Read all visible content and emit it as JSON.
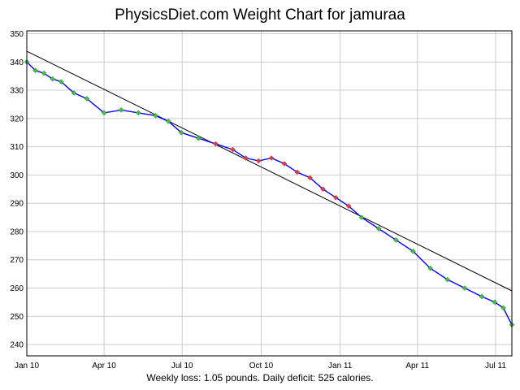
{
  "chart_data": {
    "type": "scatter",
    "title": "PhysicsDiet.com Weight Chart for jamuraa",
    "footer": "Weekly loss: 1.05 pounds. Daily deficit: 525 calories.",
    "xlabel": "",
    "ylabel": "",
    "x_ticks": [
      "Jan 10",
      "Apr 10",
      "Jul 10",
      "Oct 10",
      "Jan 11",
      "Apr 11",
      "Jul 11"
    ],
    "y_ticks": [
      240,
      250,
      260,
      270,
      280,
      290,
      300,
      310,
      320,
      330,
      340,
      350
    ],
    "xlim_days": [
      0,
      565
    ],
    "ylim": [
      236,
      351
    ],
    "grid": true,
    "colors": {
      "below_trend": "#33cc33",
      "above_trend": "#ff3333",
      "trend": "#0000ff",
      "fit_line": "#000000"
    },
    "fit_line": {
      "start": {
        "x": "Jan 10",
        "y": 343.8
      },
      "end": {
        "x": "Jul 11",
        "y": 259
      }
    },
    "series": [
      {
        "values": [
          [
            0,
            340
          ],
          [
            10,
            337
          ],
          [
            20,
            336
          ],
          [
            30,
            334
          ],
          [
            40,
            333
          ],
          [
            55,
            329
          ],
          [
            70,
            327
          ],
          [
            90,
            322
          ],
          [
            110,
            323
          ],
          [
            130,
            322
          ],
          [
            150,
            321
          ],
          [
            165,
            319
          ],
          [
            180,
            315
          ],
          [
            200,
            313
          ],
          [
            220,
            311
          ],
          [
            240,
            309
          ],
          [
            255,
            306
          ],
          [
            270,
            305
          ],
          [
            285,
            306
          ],
          [
            300,
            304
          ],
          [
            315,
            301
          ],
          [
            330,
            299
          ],
          [
            345,
            295
          ],
          [
            360,
            292
          ],
          [
            375,
            289
          ],
          [
            390,
            285
          ],
          [
            410,
            281
          ],
          [
            430,
            277
          ],
          [
            450,
            273
          ],
          [
            470,
            267
          ],
          [
            490,
            263
          ],
          [
            510,
            260
          ],
          [
            530,
            257
          ],
          [
            545,
            255
          ],
          [
            555,
            253
          ],
          [
            565,
            247
          ]
        ]
      }
    ]
  }
}
